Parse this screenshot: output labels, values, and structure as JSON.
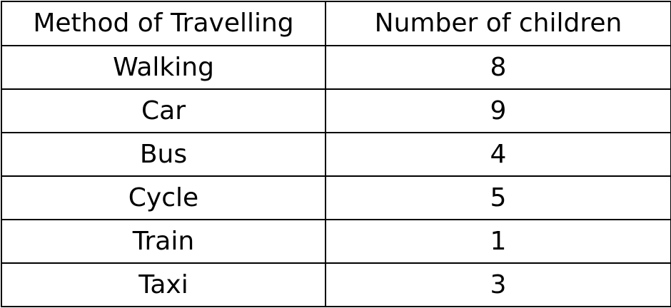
{
  "table": {
    "headers": [
      "Method of Travelling",
      "Number of children"
    ],
    "rows": [
      {
        "method": "Walking",
        "count": "8"
      },
      {
        "method": "Car",
        "count": "9"
      },
      {
        "method": "Bus",
        "count": "4"
      },
      {
        "method": "Cycle",
        "count": "5"
      },
      {
        "method": "Train",
        "count": "1"
      },
      {
        "method": "Taxi",
        "count": "3"
      }
    ]
  },
  "colors": {
    "border": "#000000",
    "text": "#000000",
    "background": "#ffffff"
  }
}
